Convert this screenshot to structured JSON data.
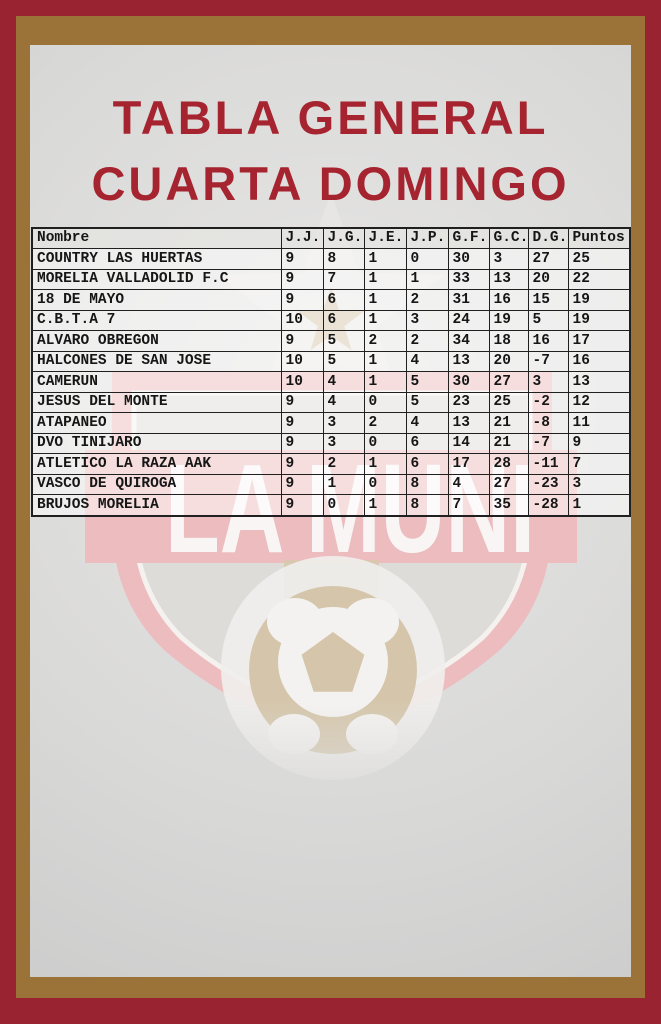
{
  "poster": {
    "title_line1": "TABLA GENERAL",
    "title_line2": "CUARTA DOMINGO"
  },
  "watermark": {
    "text": "LA MUNI"
  },
  "colors": {
    "title_red": "#a5242f",
    "frame_red": "#9a2331",
    "frame_gold": "#9b7339",
    "table_line": "#202020",
    "watermark_pink": "#edbcbf",
    "watermark_tan": "#d7c8ac",
    "background_gray": "#d9d9d8"
  },
  "chart_data": {
    "type": "table",
    "title": "TABLA GENERAL CUARTA DOMINGO",
    "columns": [
      "Nombre",
      "J.J.",
      "J.G.",
      "J.E.",
      "J.P.",
      "G.F.",
      "G.C.",
      "D.G.",
      "Puntos"
    ],
    "rows": [
      [
        "COUNTRY LAS HUERTAS",
        9,
        8,
        1,
        0,
        30,
        3,
        27,
        25
      ],
      [
        "MORELIA VALLADOLID F.C",
        9,
        7,
        1,
        1,
        33,
        13,
        20,
        22
      ],
      [
        "18 DE MAYO",
        9,
        6,
        1,
        2,
        31,
        16,
        15,
        19
      ],
      [
        "C.B.T.A 7",
        10,
        6,
        1,
        3,
        24,
        19,
        5,
        19
      ],
      [
        "ALVARO OBREGON",
        9,
        5,
        2,
        2,
        34,
        18,
        16,
        17
      ],
      [
        "HALCONES DE SAN JOSE",
        10,
        5,
        1,
        4,
        13,
        20,
        -7,
        16
      ],
      [
        "CAMERUN",
        10,
        4,
        1,
        5,
        30,
        27,
        3,
        13
      ],
      [
        "JESUS DEL MONTE",
        9,
        4,
        0,
        5,
        23,
        25,
        -2,
        12
      ],
      [
        "ATAPANEO",
        9,
        3,
        2,
        4,
        13,
        21,
        -8,
        11
      ],
      [
        "DVO TINIJARO",
        9,
        3,
        0,
        6,
        14,
        21,
        -7,
        9
      ],
      [
        "ATLETICO LA RAZA AAK",
        9,
        2,
        1,
        6,
        17,
        28,
        -11,
        7
      ],
      [
        "VASCO DE QUIROGA",
        9,
        1,
        0,
        8,
        4,
        27,
        -23,
        3
      ],
      [
        "BRUJOS MORELIA",
        9,
        0,
        1,
        8,
        7,
        35,
        -28,
        1
      ]
    ]
  }
}
